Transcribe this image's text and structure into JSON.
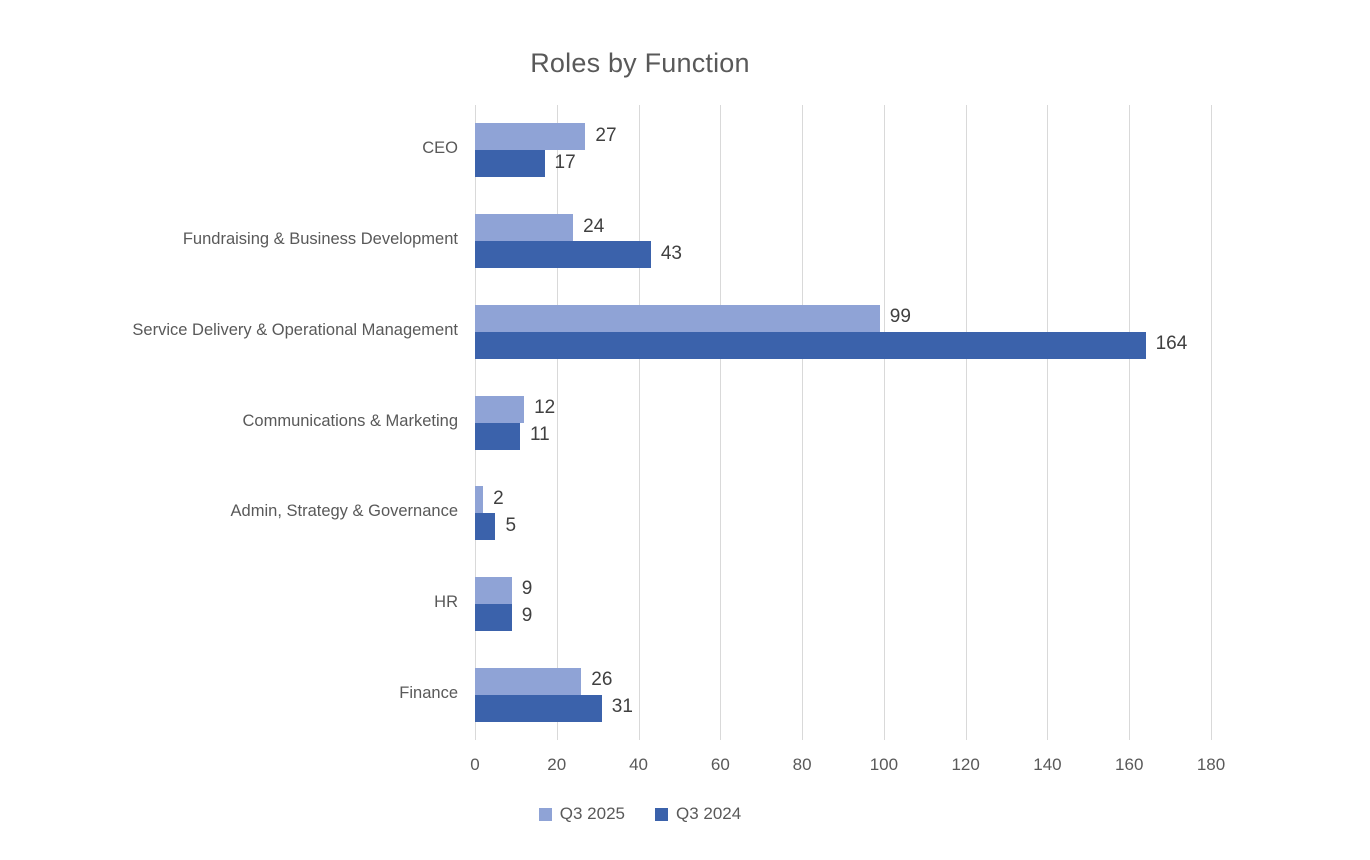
{
  "chart_data": {
    "type": "bar",
    "orientation": "horizontal",
    "title": "Roles by Function",
    "categories": [
      "CEO",
      "Fundraising & Business Development",
      "Service Delivery & Operational Management",
      "Communications & Marketing",
      "Admin, Strategy & Governance",
      "HR",
      "Finance"
    ],
    "series": [
      {
        "name": "Q3 2025",
        "color": "#8FA3D6",
        "values": [
          27,
          24,
          99,
          12,
          2,
          9,
          26
        ]
      },
      {
        "name": "Q3 2024",
        "color": "#3B62AB",
        "values": [
          17,
          43,
          164,
          11,
          5,
          9,
          31
        ]
      }
    ],
    "xlim": [
      0,
      180
    ],
    "x_ticks": [
      0,
      20,
      40,
      60,
      80,
      100,
      120,
      140,
      160,
      180
    ],
    "grid": "vertical",
    "gridline_color": "#D9D9D9",
    "legend_position": "bottom",
    "data_labels": true,
    "label_color": "#404040",
    "axis_text_color": "#595959",
    "title_color": "#595959"
  }
}
